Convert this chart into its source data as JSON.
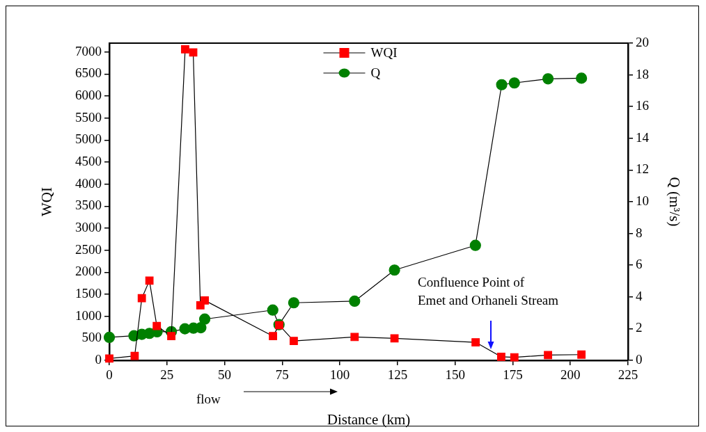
{
  "chart_data": {
    "type": "line",
    "xlabel": "Distance (km)",
    "ylabel": "WQI",
    "y2label": "Q (m³/s)",
    "xlim": [
      0,
      225
    ],
    "xticks": [
      0,
      25,
      50,
      75,
      100,
      125,
      150,
      175,
      200,
      225
    ],
    "ylim": [
      0,
      7200
    ],
    "yticks": [
      0,
      500,
      1000,
      1500,
      2000,
      2500,
      3000,
      3500,
      4000,
      4500,
      5000,
      5500,
      6000,
      6500,
      7000
    ],
    "y2lim": [
      0,
      20
    ],
    "y2ticks": [
      0,
      2,
      4,
      6,
      8,
      10,
      12,
      14,
      16,
      18,
      20
    ],
    "grid": false,
    "legend": "top",
    "line_style": "solid",
    "series": [
      {
        "name": "WQI",
        "color": "#ff0000",
        "marker": "square",
        "x": [
          0,
          11,
          14.1,
          17.4,
          20.6,
          26.9,
          32.9,
          36.4,
          39.5,
          41.4,
          71,
          73.7,
          80,
          106.4,
          123.7,
          158.9,
          170,
          175.7,
          190.3,
          204.8
        ],
        "values": [
          40,
          100,
          1410,
          1810,
          780,
          550,
          7060,
          6990,
          1250,
          1360,
          550,
          800,
          440,
          530,
          500,
          410,
          80,
          70,
          120,
          130
        ]
      },
      {
        "name": "Q",
        "color": "#008000",
        "marker": "circle",
        "axis": "y2",
        "x": [
          0,
          10.7,
          14.1,
          17.4,
          20.7,
          26.9,
          32.8,
          36.5,
          39.7,
          41.4,
          70.9,
          73.6,
          80,
          106.4,
          123.7,
          158.8,
          170.2,
          175.7,
          190.3,
          204.8
        ],
        "values": [
          1.45,
          1.55,
          1.64,
          1.7,
          1.8,
          1.81,
          1.99,
          2.03,
          2.06,
          2.6,
          3.17,
          2.25,
          3.63,
          3.73,
          5.69,
          7.25,
          17.38,
          17.49,
          17.75,
          17.79
        ]
      }
    ],
    "annotations": [
      "Confluence Point of\nEmet and Orhaneli Stream",
      "flow"
    ]
  }
}
